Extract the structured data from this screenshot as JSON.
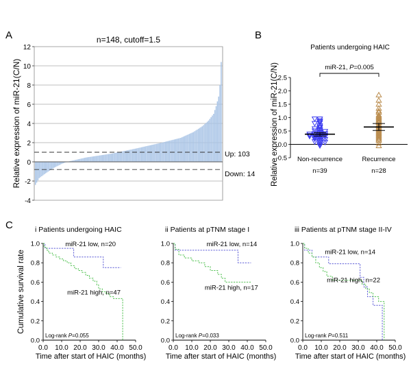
{
  "panels": {
    "A": "A",
    "B": "B",
    "C": "C"
  },
  "chart_data": [
    {
      "id": "A",
      "type": "bar",
      "title": "n=148, cutoff=1.5",
      "ylabel": "Relative expression of miR-21(C/N)",
      "ylim": [
        -4,
        12
      ],
      "yticks": [
        -4,
        -2,
        0,
        2,
        4,
        6,
        8,
        10,
        12
      ],
      "grid": true,
      "n": 148,
      "bar_color": "#a9c4e6",
      "thresholds": [
        {
          "y": 1.0,
          "label": "Up: 103"
        },
        {
          "y": -0.8,
          "label": "Down: 14"
        }
      ],
      "profile": [
        [
          0,
          -2.4
        ],
        [
          3,
          -1.7
        ],
        [
          8,
          -1.2
        ],
        [
          15,
          -0.6
        ],
        [
          21,
          -0.2
        ],
        [
          25,
          0.0
        ],
        [
          40,
          0.45
        ],
        [
          60,
          0.85
        ],
        [
          80,
          1.4
        ],
        [
          100,
          2.0
        ],
        [
          115,
          2.5
        ],
        [
          125,
          3.1
        ],
        [
          132,
          3.7
        ],
        [
          137,
          4.3
        ],
        [
          141,
          5.0
        ],
        [
          143,
          5.8
        ],
        [
          145,
          6.8
        ],
        [
          146,
          8.0
        ],
        [
          147,
          10.4
        ]
      ]
    },
    {
      "id": "B",
      "type": "scatter",
      "title": "Patients undergoing HAIC",
      "ylabel": "Relative expression of miR-21(C/N)",
      "ylim": [
        -0.5,
        2.5
      ],
      "yticks": [
        -0.5,
        0.0,
        0.5,
        1.0,
        1.5,
        2.0,
        2.5
      ],
      "bracket_label": "miR-21, ",
      "bracket_p": "P",
      "bracket_value": "=0.005",
      "series": [
        {
          "name": "Non-recurrence",
          "n_label": "n=39",
          "color": "#3b3bf0",
          "marker": "triangle-down",
          "mean": 0.38,
          "sem_low": 0.31,
          "sem_high": 0.44,
          "values": [
            0.95,
            0.95,
            0.88,
            0.85,
            0.8,
            0.78,
            0.7,
            0.65,
            0.62,
            0.58,
            0.55,
            0.52,
            0.5,
            0.48,
            0.45,
            0.42,
            0.4,
            0.4,
            0.38,
            0.36,
            0.35,
            0.34,
            0.32,
            0.3,
            0.28,
            0.27,
            0.25,
            0.22,
            0.2,
            0.18,
            0.15,
            0.12,
            0.1,
            0.08,
            0.05,
            0.0,
            -0.05,
            0.3,
            0.33
          ]
        },
        {
          "name": "Recurrence",
          "n_label": "n=28",
          "color": "#b98a4a",
          "marker": "triangle-up",
          "mean": 0.65,
          "sem_low": 0.52,
          "sem_high": 0.78,
          "values": [
            1.85,
            1.65,
            1.5,
            1.35,
            1.25,
            1.2,
            1.1,
            1.05,
            1.0,
            0.95,
            0.9,
            0.85,
            0.82,
            0.75,
            0.7,
            0.65,
            0.6,
            0.55,
            0.5,
            0.45,
            0.4,
            0.35,
            0.3,
            0.25,
            0.15,
            0.05,
            -0.05,
            0.2
          ]
        }
      ]
    },
    {
      "id": "C-i",
      "type": "line",
      "numeral": "i",
      "title": "Patients undergoing HAIC",
      "ylabel": "Cumulative survival rate",
      "xlabel": "Time after start of HAIC (months)",
      "xlim": [
        0,
        50
      ],
      "ylim": [
        0,
        1
      ],
      "xticks": [
        0,
        10,
        20,
        30,
        40,
        50
      ],
      "yticks": [
        0.0,
        0.2,
        0.4,
        0.6,
        0.8,
        1.0
      ],
      "logrank_label": "Log-rank ",
      "logrank_p": "P",
      "logrank_value": "=0.055",
      "series": [
        {
          "name": "miR-21 low, n=20",
          "color": "#5b5bd6",
          "steps": [
            [
              0,
              1.0
            ],
            [
              1,
              0.95
            ],
            [
              16,
              0.95
            ],
            [
              16.5,
              0.86
            ],
            [
              32,
              0.86
            ],
            [
              32.5,
              0.75
            ],
            [
              42,
              0.75
            ]
          ]
        },
        {
          "name": "miR-21 high, n=47",
          "color": "#4fc04f",
          "steps": [
            [
              0,
              1.0
            ],
            [
              0.5,
              0.96
            ],
            [
              2,
              0.93
            ],
            [
              3,
              0.9
            ],
            [
              5,
              0.88
            ],
            [
              7,
              0.86
            ],
            [
              9,
              0.84
            ],
            [
              11,
              0.82
            ],
            [
              13,
              0.8
            ],
            [
              15,
              0.77
            ],
            [
              17,
              0.74
            ],
            [
              19,
              0.72
            ],
            [
              21,
              0.7
            ],
            [
              23,
              0.67
            ],
            [
              25,
              0.64
            ],
            [
              27,
              0.61
            ],
            [
              29,
              0.57
            ],
            [
              30,
              0.53
            ],
            [
              32,
              0.5
            ],
            [
              34,
              0.48
            ],
            [
              36,
              0.45
            ],
            [
              38,
              0.43
            ],
            [
              42,
              0.43
            ],
            [
              43,
              0.0
            ]
          ]
        }
      ],
      "legend_pos": [
        {
          "x": 12,
          "y": 0.97
        },
        {
          "x": 13,
          "y": 0.47
        }
      ]
    },
    {
      "id": "C-ii",
      "type": "line",
      "numeral": "ii",
      "title": "Patients at pTNM stage I",
      "xlabel": "Time after start of HAIC (months)",
      "xlim": [
        0,
        50
      ],
      "ylim": [
        0,
        1
      ],
      "xticks": [
        0,
        10,
        20,
        30,
        40,
        50
      ],
      "yticks": [
        0.0,
        0.2,
        0.4,
        0.6,
        0.8,
        1.0
      ],
      "logrank_label": "Log-rank ",
      "logrank_p": "P",
      "logrank_value": "=0.033",
      "series": [
        {
          "name": "miR-21 low, n=14",
          "color": "#5b5bd6",
          "steps": [
            [
              0,
              1.0
            ],
            [
              1,
              0.93
            ],
            [
              34,
              0.93
            ],
            [
              35,
              0.8
            ],
            [
              42,
              0.8
            ]
          ]
        },
        {
          "name": "miR-21 high, n=17",
          "color": "#4fc04f",
          "steps": [
            [
              0,
              1.0
            ],
            [
              1,
              0.94
            ],
            [
              3,
              0.88
            ],
            [
              6,
              0.85
            ],
            [
              10,
              0.82
            ],
            [
              14,
              0.8
            ],
            [
              17,
              0.76
            ],
            [
              20,
              0.72
            ],
            [
              24,
              0.68
            ],
            [
              26,
              0.64
            ],
            [
              28,
              0.6
            ],
            [
              42,
              0.6
            ]
          ]
        }
      ],
      "legend_pos": [
        {
          "x": 18,
          "y": 0.97
        },
        {
          "x": 17,
          "y": 0.52
        }
      ]
    },
    {
      "id": "C-iii",
      "type": "line",
      "numeral": "iii",
      "title": "Patients at pTNM stage II-IV",
      "xlabel": "Time after start of HAIC (months)",
      "xlim": [
        0,
        50
      ],
      "ylim": [
        0,
        1
      ],
      "xticks": [
        0,
        10,
        20,
        30,
        40,
        50
      ],
      "yticks": [
        0.0,
        0.2,
        0.4,
        0.6,
        0.8,
        1.0
      ],
      "logrank_label": "Log-rank ",
      "logrank_p": "P",
      "logrank_value": "=0.511",
      "series": [
        {
          "name": "miR-21 low, n=14",
          "color": "#5b5bd6",
          "steps": [
            [
              0,
              1.0
            ],
            [
              1,
              0.93
            ],
            [
              5,
              0.86
            ],
            [
              13,
              0.86
            ],
            [
              14,
              0.79
            ],
            [
              30,
              0.79
            ],
            [
              31,
              0.65
            ],
            [
              33,
              0.55
            ],
            [
              35,
              0.45
            ],
            [
              38,
              0.36
            ],
            [
              42,
              0.36
            ],
            [
              43,
              0.0
            ]
          ]
        },
        {
          "name": "miR-21 high, n=22",
          "color": "#4fc04f",
          "steps": [
            [
              0,
              1.0
            ],
            [
              1,
              0.95
            ],
            [
              3,
              0.9
            ],
            [
              5,
              0.86
            ],
            [
              7,
              0.8
            ],
            [
              9,
              0.75
            ],
            [
              11,
              0.71
            ],
            [
              13,
              0.66
            ],
            [
              16,
              0.62
            ],
            [
              20,
              0.62
            ],
            [
              30,
              0.62
            ],
            [
              32,
              0.58
            ],
            [
              34,
              0.53
            ],
            [
              36,
              0.49
            ],
            [
              38,
              0.45
            ],
            [
              41,
              0.4
            ],
            [
              43,
              0.4
            ],
            [
              44,
              0.0
            ]
          ]
        }
      ],
      "legend_pos": [
        {
          "x": 12,
          "y": 0.89
        },
        {
          "x": 13,
          "y": 0.6
        }
      ]
    }
  ]
}
